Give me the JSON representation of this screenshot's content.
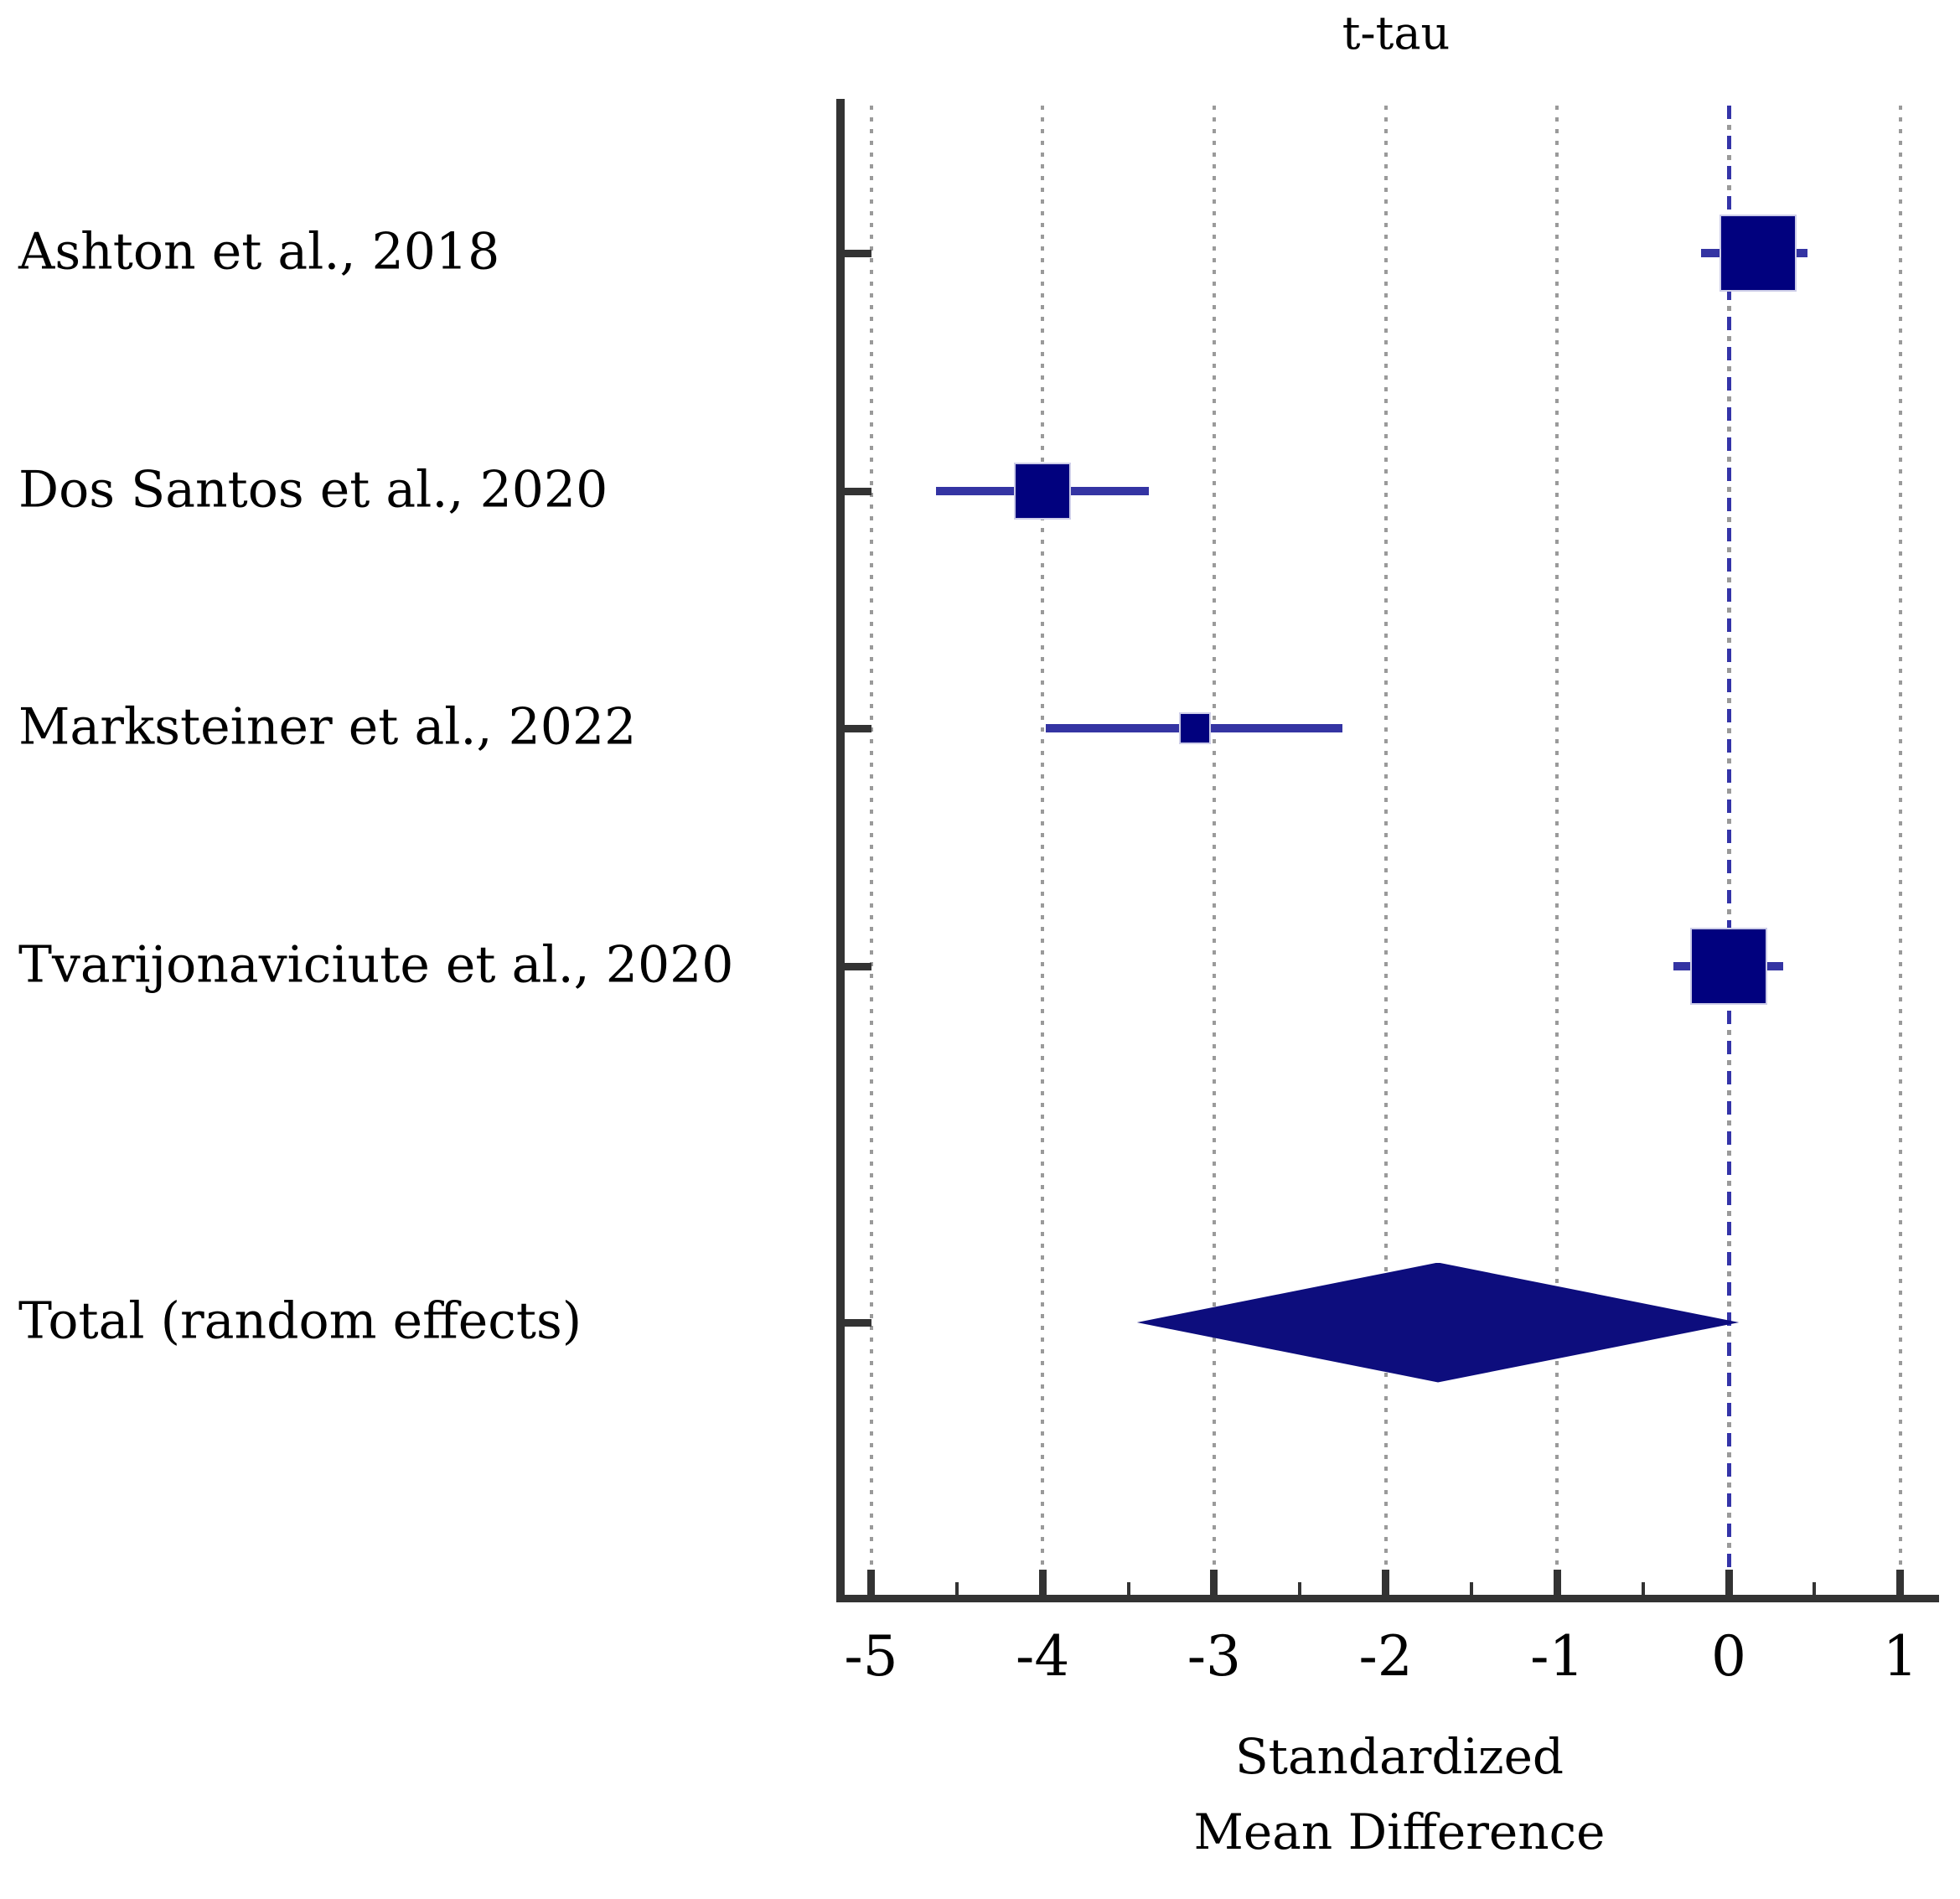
{
  "title": "t-tau",
  "axis": {
    "xlabel_line1": "Standardized",
    "xlabel_line2": "Mean Difference",
    "tick_labels": [
      "-5",
      "-4",
      "-3",
      "-2",
      "-1",
      "0",
      "1"
    ]
  },
  "chart_data": {
    "type": "forest",
    "title": "t-tau",
    "xlabel": "Standardized Mean Difference",
    "x_ticks": [
      -5,
      -4,
      -3,
      -2,
      -1,
      0,
      1
    ],
    "minor_ticks": [
      -4.5,
      -3.5,
      -2.5,
      -1.5,
      -0.5,
      0.5
    ],
    "xlim": [
      -5.3,
      1.2
    ],
    "zero_line": 0,
    "grid": "vertical-dotted",
    "studies": [
      {
        "label": "Ashton et al., 2018",
        "smd": 0.17,
        "ci_low": -0.16,
        "ci_high": 0.46,
        "marker_px": 92
      },
      {
        "label": "Dos Santos et al., 2020",
        "smd": -4.0,
        "ci_low": -4.62,
        "ci_high": -3.38,
        "marker_px": 68
      },
      {
        "label": "Marksteiner et al., 2022",
        "smd": -3.11,
        "ci_low": -3.98,
        "ci_high": -2.25,
        "marker_px": 38
      },
      {
        "label": "Tvarijonaviciute et al., 2020",
        "smd": 0.0,
        "ci_low": -0.32,
        "ci_high": 0.32,
        "marker_px": 92
      }
    ],
    "total": {
      "label": "Total (random effects)",
      "smd": -1.68,
      "ci_low": -3.45,
      "ci_high": 0.06
    }
  },
  "colors": {
    "marker": "#01017E",
    "ci_line": "#3434A3",
    "marker_edge": "#CDCDE8",
    "diamond": "#0D0D7D",
    "axis": "#333333",
    "gridline": "#9A9A9A",
    "zero_line_blue": "#3434A8",
    "text": "#000000",
    "background": "#FFFFFF"
  }
}
